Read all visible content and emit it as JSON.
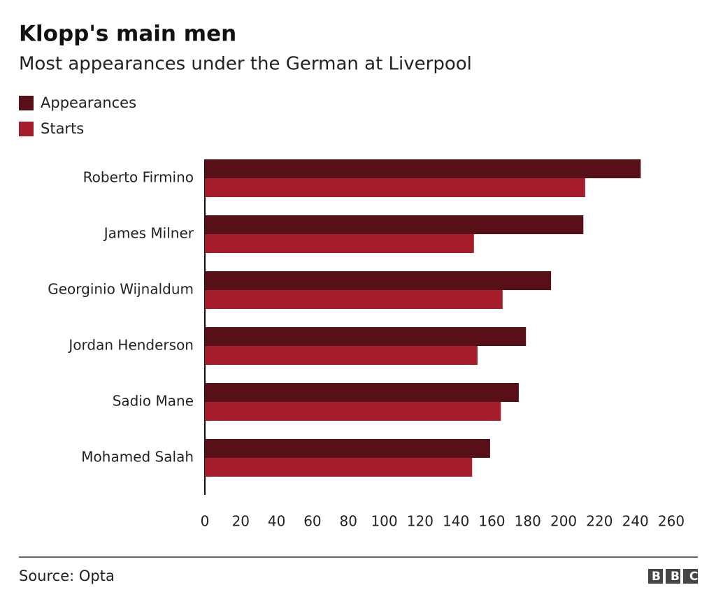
{
  "chart_data": {
    "type": "bar",
    "orientation": "horizontal",
    "title": "Klopp's main men",
    "subtitle": "Most appearances under the German at Liverpool",
    "categories": [
      "Roberto Firmino",
      "James Milner",
      "Georginio Wijnaldum",
      "Jordan Henderson",
      "Sadio Mane",
      "Mohamed Salah"
    ],
    "series": [
      {
        "name": "Appearances",
        "color": "#570f18",
        "values": [
          243,
          211,
          193,
          179,
          175,
          159
        ]
      },
      {
        "name": "Starts",
        "color": "#a51d2a",
        "values": [
          212,
          150,
          166,
          152,
          165,
          149
        ]
      }
    ],
    "xlim": [
      0,
      260
    ],
    "xticks": [
      0,
      20,
      40,
      60,
      80,
      100,
      120,
      140,
      160,
      180,
      200,
      220,
      240,
      260
    ],
    "grid": false,
    "source": "Source: Opta",
    "logo": "BBC"
  }
}
